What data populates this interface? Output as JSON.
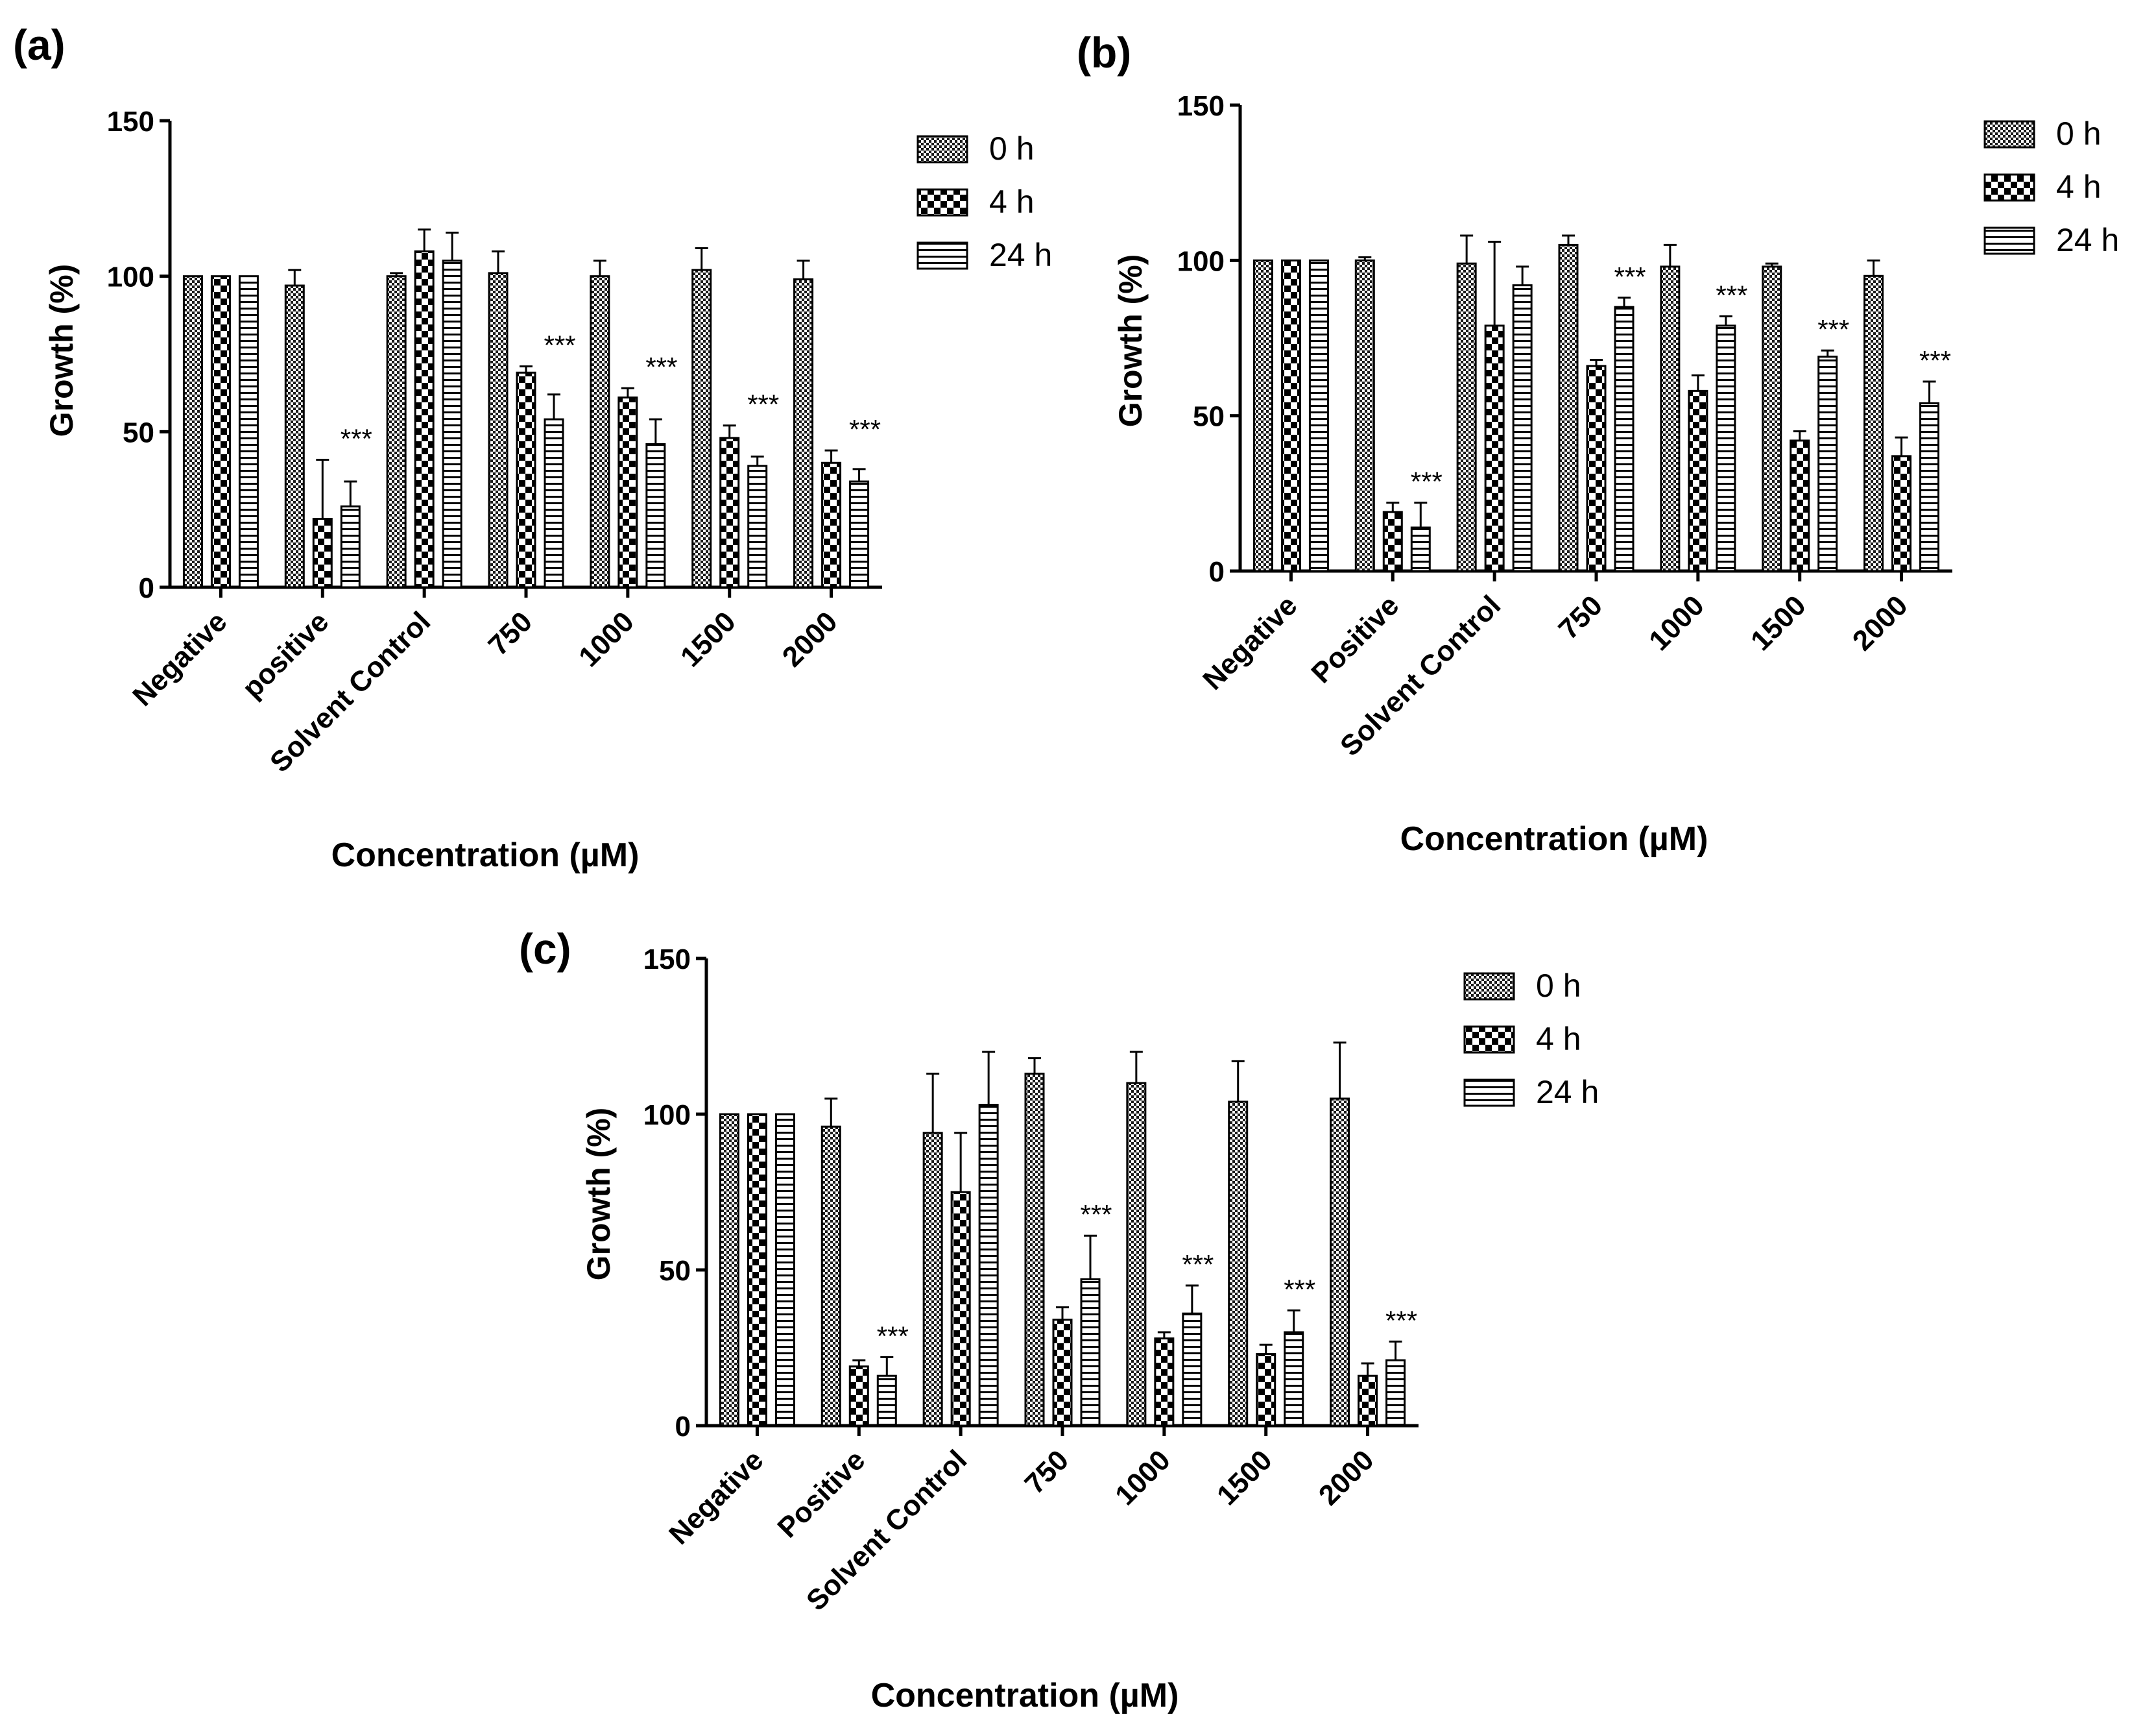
{
  "chart_data": [
    {
      "panel_label": "(a)",
      "type": "bar",
      "title": "",
      "xlabel": "Concentration (µM)",
      "ylabel": "Growth (%)",
      "ylim": [
        0,
        150
      ],
      "yticks": [
        "0",
        "50",
        "100",
        "150"
      ],
      "categories": [
        "Negative",
        "positive",
        "Solvent Control",
        "750",
        "1000",
        "1500",
        "2000"
      ],
      "series": [
        {
          "name": "0 h",
          "values": [
            100,
            97,
            100,
            101,
            100,
            102,
            99
          ],
          "errors": [
            0,
            5,
            1,
            7,
            5,
            7,
            6
          ]
        },
        {
          "name": "4 h",
          "values": [
            100,
            22,
            108,
            69,
            61,
            48,
            40
          ],
          "errors": [
            0,
            19,
            7,
            2,
            3,
            4,
            4
          ]
        },
        {
          "name": "24 h",
          "values": [
            100,
            26,
            105,
            54,
            46,
            39,
            34
          ],
          "errors": [
            0,
            8,
            9,
            8,
            8,
            3,
            4
          ]
        }
      ],
      "annotations": [
        {
          "category": 1,
          "text": "***"
        },
        {
          "category": 3,
          "text": "***"
        },
        {
          "category": 4,
          "text": "***"
        },
        {
          "category": 5,
          "text": "***"
        },
        {
          "category": 6,
          "text": "***"
        }
      ],
      "legend": "top-right"
    },
    {
      "panel_label": "(b)",
      "type": "bar",
      "title": "",
      "xlabel": "Concentration (µM)",
      "ylabel": "Growth (%)",
      "ylim": [
        0,
        150
      ],
      "yticks": [
        "0",
        "50",
        "100",
        "150"
      ],
      "categories": [
        "Negative",
        "Positive",
        "Solvent Control",
        "750",
        "1000",
        "1500",
        "2000"
      ],
      "series": [
        {
          "name": "0 h",
          "values": [
            100,
            100,
            99,
            105,
            98,
            98,
            95
          ],
          "errors": [
            0,
            1,
            9,
            3,
            7,
            1,
            5
          ]
        },
        {
          "name": "4 h",
          "values": [
            100,
            19,
            79,
            66,
            58,
            42,
            37
          ],
          "errors": [
            0,
            3,
            27,
            2,
            5,
            3,
            6
          ]
        },
        {
          "name": "24 h",
          "values": [
            100,
            14,
            92,
            85,
            79,
            69,
            54
          ],
          "errors": [
            0,
            8,
            6,
            3,
            3,
            2,
            7
          ]
        }
      ],
      "annotations": [
        {
          "category": 1,
          "text": "***"
        },
        {
          "category": 3,
          "text": "***"
        },
        {
          "category": 4,
          "text": "***"
        },
        {
          "category": 5,
          "text": "***"
        },
        {
          "category": 6,
          "text": "***"
        }
      ],
      "legend": "top-right"
    },
    {
      "panel_label": "(c)",
      "type": "bar",
      "title": "",
      "xlabel": "Concentration (µM)",
      "ylabel": "Growth (%)",
      "ylim": [
        0,
        150
      ],
      "yticks": [
        "0",
        "50",
        "100",
        "150"
      ],
      "categories": [
        "Negative",
        "Positive",
        "Solvent Control",
        "750",
        "1000",
        "1500",
        "2000"
      ],
      "series": [
        {
          "name": "0 h",
          "values": [
            100,
            96,
            94,
            113,
            110,
            104,
            105
          ],
          "errors": [
            0,
            9,
            19,
            5,
            10,
            13,
            18
          ]
        },
        {
          "name": "4 h",
          "values": [
            100,
            19,
            75,
            34,
            28,
            23,
            16
          ],
          "errors": [
            0,
            2,
            19,
            4,
            2,
            3,
            4
          ]
        },
        {
          "name": "24 h",
          "values": [
            100,
            16,
            103,
            47,
            36,
            30,
            21
          ],
          "errors": [
            0,
            6,
            17,
            14,
            9,
            7,
            6
          ]
        }
      ],
      "annotations": [
        {
          "category": 1,
          "text": "***"
        },
        {
          "category": 3,
          "text": "***"
        },
        {
          "category": 4,
          "text": "***"
        },
        {
          "category": 5,
          "text": "***"
        },
        {
          "category": 6,
          "text": "***"
        }
      ],
      "legend": "top-right"
    }
  ]
}
